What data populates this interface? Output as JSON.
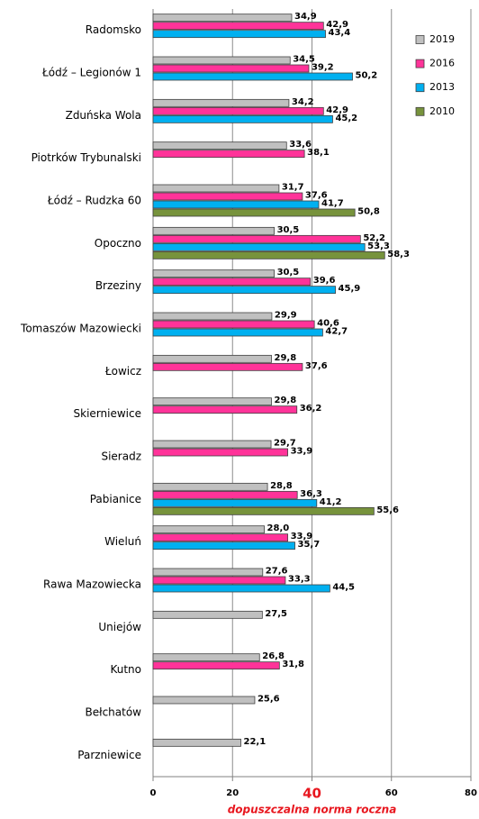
{
  "chart_data": {
    "type": "bar",
    "orientation": "horizontal",
    "categories": [
      "Radomsko",
      "Łódź – Legionów 1",
      "Zduńska Wola",
      "Piotrków Trybunalski",
      "Łódź – Rudzka 60",
      "Opoczno",
      "Brzeziny",
      "Tomaszów Mazowiecki",
      "Łowicz",
      "Skierniewice",
      "Sieradz",
      "Pabianice",
      "Wieluń",
      "Rawa Mazowiecka",
      "Uniejów",
      "Kutno",
      "Bełchatów",
      "Parzniewice"
    ],
    "series": [
      {
        "name": "2019",
        "color": "#c0c0c0",
        "values": [
          34.9,
          34.5,
          34.2,
          33.6,
          31.7,
          30.5,
          30.5,
          29.9,
          29.8,
          29.8,
          29.7,
          28.8,
          28.0,
          27.6,
          27.5,
          26.8,
          25.6,
          22.1
        ],
        "value_labels": [
          "34,9",
          "34,5",
          "34,2",
          "33,6",
          "31,7",
          "30,5",
          "30,5",
          "29,9",
          "29,8",
          "29,8",
          "29,7",
          "28,8",
          "28,0",
          "27,6",
          "27,5",
          "26,8",
          "25,6",
          "22,1"
        ]
      },
      {
        "name": "2016",
        "color": "#ff3399",
        "values": [
          42.9,
          39.2,
          42.9,
          38.1,
          37.6,
          52.2,
          39.6,
          40.6,
          37.6,
          36.2,
          33.9,
          36.3,
          33.9,
          33.3,
          null,
          31.8,
          null,
          null
        ],
        "value_labels": [
          "42,9",
          "39,2",
          "42,9",
          "38,1",
          "37,6",
          "52,2",
          "39,6",
          "40,6",
          "37,6",
          "36,2",
          "33,9",
          "36,3",
          "33,9",
          "33,3",
          null,
          "31,8",
          null,
          null
        ]
      },
      {
        "name": "2013",
        "color": "#00b0f0",
        "values": [
          43.4,
          50.2,
          45.2,
          null,
          41.7,
          53.3,
          45.9,
          42.7,
          null,
          null,
          null,
          41.2,
          35.7,
          44.5,
          null,
          null,
          null,
          null
        ],
        "value_labels": [
          "43,4",
          "50,2",
          "45,2",
          null,
          "41,7",
          "53,3",
          "45,9",
          "42,7",
          null,
          null,
          null,
          "41,2",
          "35,7",
          "44,5",
          null,
          null,
          null,
          null
        ]
      },
      {
        "name": "2010",
        "color": "#77933c",
        "values": [
          null,
          null,
          null,
          null,
          50.8,
          58.3,
          null,
          null,
          null,
          null,
          null,
          55.6,
          null,
          null,
          null,
          null,
          null,
          null
        ],
        "value_labels": [
          null,
          null,
          null,
          null,
          "50,8",
          "58,3",
          null,
          null,
          null,
          null,
          null,
          "55,6",
          null,
          null,
          null,
          null,
          null,
          null
        ]
      }
    ],
    "xlim": [
      0,
      80
    ],
    "xticks": [
      0,
      20,
      40,
      60,
      80
    ],
    "grid": true,
    "legend": "upper right",
    "annotation": {
      "text": "dopuszczalna norma roczna",
      "x": 40
    }
  }
}
